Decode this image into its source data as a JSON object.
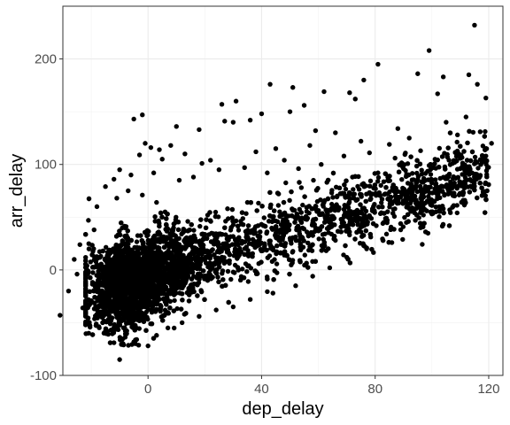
{
  "chart_data": {
    "type": "scatter",
    "title": "",
    "xlabel": "dep_delay",
    "ylabel": "arr_delay",
    "xlim": [
      -30,
      125
    ],
    "ylim": [
      -100,
      250
    ],
    "x_ticks": [
      0,
      40,
      80,
      120
    ],
    "x_tick_labels": [
      "0",
      "40",
      "80",
      "120"
    ],
    "y_ticks": [
      -100,
      0,
      100,
      200
    ],
    "y_tick_labels": [
      "-100",
      "0",
      "100",
      "200"
    ],
    "grid": true,
    "legend": "none",
    "point_color": "#000000",
    "series": [
      {
        "values": [
          [
            115,
            232
          ],
          [
            99,
            208
          ],
          [
            81,
            195
          ],
          [
            95,
            186
          ],
          [
            113,
            185
          ],
          [
            104,
            183
          ],
          [
            76,
            180
          ],
          [
            116,
            176
          ],
          [
            43,
            176
          ],
          [
            51,
            173
          ],
          [
            62,
            169
          ],
          [
            71,
            168
          ],
          [
            102,
            167
          ],
          [
            119,
            163
          ],
          [
            73,
            162
          ],
          [
            31,
            160
          ],
          [
            26,
            157
          ],
          [
            55,
            156
          ],
          [
            50,
            150
          ],
          [
            40,
            148
          ],
          [
            112,
            145
          ],
          [
            -2,
            147
          ],
          [
            -5,
            143
          ],
          [
            36,
            142
          ],
          [
            27,
            141
          ],
          [
            30,
            140
          ],
          [
            10,
            136
          ],
          [
            18,
            133
          ],
          [
            59,
            132
          ],
          [
            66,
            130
          ],
          [
            88,
            134
          ],
          [
            105,
            140
          ],
          [
            -1,
            120
          ],
          [
            1,
            116
          ],
          [
            4,
            114
          ],
          [
            8,
            118
          ],
          [
            -3,
            109
          ],
          [
            5,
            105
          ],
          [
            13,
            110
          ],
          [
            19,
            101
          ],
          [
            22,
            104
          ],
          [
            38,
            112
          ],
          [
            45,
            115
          ],
          [
            57,
            118
          ],
          [
            75,
            122
          ],
          [
            85,
            119
          ],
          [
            92,
            125
          ],
          [
            109,
            128
          ],
          [
            117,
            131
          ],
          [
            121,
            120
          ],
          [
            -10,
            95
          ],
          [
            -12,
            86
          ],
          [
            -15,
            79
          ],
          [
            -6,
            90
          ],
          [
            2,
            92
          ],
          [
            11,
            85
          ],
          [
            16,
            88
          ],
          [
            25,
            95
          ],
          [
            34,
            97
          ],
          [
            42,
            92
          ],
          [
            48,
            104
          ],
          [
            53,
            96
          ],
          [
            61,
            100
          ],
          [
            69,
            108
          ],
          [
            78,
            111
          ],
          [
            87,
            106
          ],
          [
            96,
            113
          ],
          [
            106,
            104
          ],
          [
            112,
            97
          ],
          [
            119,
            108
          ],
          [
            -18,
            60
          ],
          [
            -21,
            47
          ],
          [
            -19,
            38
          ],
          [
            -24,
            24
          ],
          [
            -26,
            10
          ],
          [
            -25,
            -4
          ],
          [
            -22,
            -15
          ],
          [
            -20,
            -31
          ],
          [
            -18,
            -42
          ],
          [
            -16,
            -50
          ],
          [
            -14,
            -61
          ],
          [
            -12,
            -69
          ],
          [
            -10,
            -85
          ],
          [
            -31,
            -43
          ],
          [
            -28,
            -20
          ],
          [
            -23,
            -36
          ],
          [
            -17,
            -25
          ],
          [
            -13,
            -48
          ],
          [
            -8,
            -58
          ],
          [
            -4,
            -66
          ],
          [
            0,
            -72
          ],
          [
            3,
            -62
          ],
          [
            7,
            -55
          ],
          [
            12,
            -50
          ],
          [
            18,
            -44
          ],
          [
            24,
            -38
          ],
          [
            30,
            -35
          ],
          [
            36,
            -28
          ],
          [
            44,
            -22
          ],
          [
            52,
            -15
          ],
          [
            58,
            -6
          ],
          [
            64,
            2
          ],
          [
            70,
            12
          ],
          [
            77,
            20
          ],
          [
            84,
            34
          ],
          [
            91,
            45
          ],
          [
            97,
            52
          ],
          [
            104,
            58
          ],
          [
            111,
            66
          ],
          [
            118,
            74
          ],
          [
            46,
            72
          ],
          [
            54,
            78
          ],
          [
            63,
            83
          ],
          [
            72,
            88
          ],
          [
            81,
            92
          ],
          [
            90,
            96
          ],
          [
            99,
            99
          ],
          [
            108,
            102
          ],
          [
            35,
            64
          ],
          [
            28,
            58
          ],
          [
            21,
            52
          ],
          [
            14,
            46
          ],
          [
            9,
            40
          ],
          [
            6,
            55
          ],
          [
            3,
            64
          ],
          [
            -2,
            71
          ],
          [
            -7,
            75
          ],
          [
            -11,
            68
          ],
          [
            94,
            70
          ],
          [
            86,
            64
          ],
          [
            79,
            56
          ],
          [
            68,
            48
          ],
          [
            59,
            40
          ],
          [
            50,
            30
          ],
          [
            41,
            22
          ],
          [
            32,
            14
          ],
          [
            23,
            6
          ],
          [
            15,
            -2
          ],
          [
            96,
            40
          ],
          [
            89,
            38
          ],
          [
            83,
            45
          ],
          [
            75,
            36
          ],
          [
            66,
            28
          ],
          [
            57,
            22
          ],
          [
            48,
            14
          ],
          [
            39,
            6
          ],
          [
            30,
            -2
          ],
          [
            21,
            -10
          ]
        ]
      }
    ]
  }
}
